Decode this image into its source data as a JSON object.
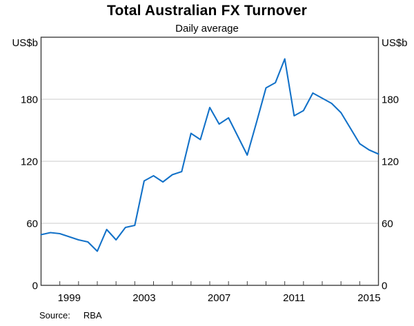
{
  "page": {
    "title": "Total Australian FX Turnover",
    "subtitle": "Daily average",
    "unit_left": "US$b",
    "unit_right": "US$b",
    "source_label": "Source:",
    "source_value": "RBA"
  },
  "chart_data": {
    "type": "line",
    "title": "Total Australian FX Turnover",
    "subtitle": "Daily average",
    "ylabel": "US$b",
    "xlabel": "",
    "source": "RBA",
    "series": [
      {
        "name": "Total Australian FX turnover, daily average (US$b)",
        "x": [
          1998,
          1998.5,
          1999,
          1999.5,
          2000,
          2000.5,
          2001,
          2001.5,
          2002,
          2002.5,
          2003,
          2003.5,
          2004,
          2004.5,
          2005,
          2005.5,
          2006,
          2006.5,
          2007,
          2007.5,
          2008,
          2008.5,
          2009,
          2009.5,
          2010,
          2010.5,
          2011,
          2011.5,
          2012,
          2012.5,
          2013,
          2013.5,
          2014,
          2014.5,
          2015,
          2015.5,
          2016
        ],
        "values": [
          49,
          51,
          50,
          47,
          44,
          42,
          33,
          54,
          44,
          56,
          58,
          101,
          106,
          100,
          107,
          110,
          147,
          141,
          172,
          156,
          162,
          144,
          126,
          158,
          191,
          196,
          219,
          164,
          169,
          186,
          181,
          176,
          167,
          152,
          137,
          131,
          127
        ]
      }
    ],
    "xlim": [
      1998,
      2016
    ],
    "ylim": [
      0,
      240
    ],
    "y_gridlines": [
      60,
      120,
      180
    ],
    "y_tick_labels": [
      "0",
      "60",
      "120",
      "180"
    ],
    "y_tick_values": [
      0,
      60,
      120,
      180
    ],
    "y_labels_both_sides": true,
    "x_tick_years": [
      1999,
      2000,
      2001,
      2002,
      2003,
      2004,
      2005,
      2006,
      2007,
      2008,
      2009,
      2010,
      2011,
      2012,
      2013,
      2014,
      2015
    ],
    "x_label_years": [
      "1999",
      "2003",
      "2007",
      "2011",
      "2015"
    ],
    "grid": "horizontal-only",
    "legend_position": "none",
    "colors": {
      "line": "#1271C8",
      "frame": "#3F3F3F",
      "gridline": "#CBCBCB",
      "text": "#000000",
      "background": "#FFFFFF"
    }
  }
}
